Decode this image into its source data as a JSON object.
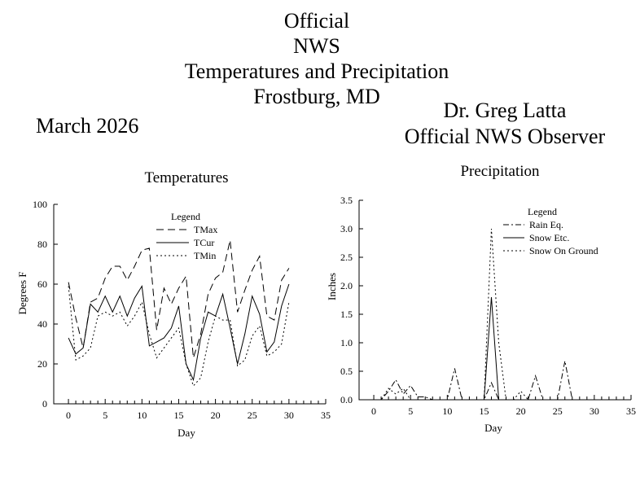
{
  "header": {
    "title_lines": [
      "Official",
      "NWS",
      "Temperatures and Precipitation",
      "Frostburg, MD"
    ],
    "month": "March 2026",
    "observer_name": "Dr. Greg Latta",
    "observer_title": "Official NWS Observer"
  },
  "chart_data": [
    {
      "type": "line",
      "title": "Temperatures",
      "xlabel": "Day",
      "ylabel": "Degrees F",
      "xlim": [
        -2,
        35
      ],
      "ylim": [
        0,
        100
      ],
      "x_ticks": [
        0,
        5,
        10,
        15,
        20,
        25,
        30,
        35
      ],
      "y_ticks": [
        0,
        20,
        40,
        60,
        80,
        100
      ],
      "legend_title": "Legend",
      "legend_position": "top-center",
      "x": [
        0,
        1,
        2,
        3,
        4,
        5,
        6,
        7,
        8,
        9,
        10,
        11,
        12,
        13,
        14,
        15,
        16,
        17,
        18,
        19,
        20,
        21,
        22,
        23,
        24,
        25,
        26,
        27,
        28,
        29,
        30
      ],
      "series": [
        {
          "name": "TMax",
          "style": "dashed",
          "values": [
            61,
            43,
            28,
            51,
            53,
            63,
            69,
            69,
            62,
            69,
            77,
            78,
            37,
            58,
            50,
            58,
            64,
            23,
            35,
            55,
            63,
            66,
            82,
            46,
            57,
            67,
            74,
            44,
            42,
            62,
            68
          ]
        },
        {
          "name": "TCur",
          "style": "solid",
          "values": [
            33,
            25,
            28,
            50,
            46,
            54,
            46,
            54,
            44,
            53,
            59,
            29,
            31,
            33,
            38,
            49,
            20,
            12,
            33,
            46,
            44,
            55,
            38,
            20,
            35,
            54,
            45,
            26,
            31,
            49,
            60
          ]
        },
        {
          "name": "TMin",
          "style": "dotted",
          "values": [
            59,
            22,
            24,
            28,
            44,
            46,
            44,
            46,
            39,
            44,
            51,
            35,
            23,
            28,
            33,
            38,
            20,
            9,
            13,
            31,
            44,
            42,
            42,
            19,
            22,
            34,
            39,
            24,
            26,
            30,
            51
          ]
        }
      ]
    },
    {
      "type": "line",
      "title": "Precipitation",
      "xlabel": "Day",
      "ylabel": "Inches",
      "xlim": [
        -2,
        35
      ],
      "ylim": [
        0,
        3.5
      ],
      "x_ticks": [
        0,
        5,
        10,
        15,
        20,
        25,
        30,
        35
      ],
      "y_ticks": [
        "0.0",
        "0.5",
        "1.0",
        "1.5",
        "2.0",
        "2.5",
        "3.0",
        "3.5"
      ],
      "legend_title": "Legend",
      "legend_position": "top-right",
      "x": [
        0,
        1,
        2,
        3,
        4,
        5,
        6,
        7,
        8,
        9,
        10,
        11,
        12,
        13,
        14,
        15,
        16,
        17,
        18,
        19,
        20,
        21,
        22,
        23,
        24,
        25,
        26,
        27,
        28,
        29,
        30
      ],
      "series": [
        {
          "name": "Rain Eq.",
          "style": "dashdot",
          "values": [
            0,
            0,
            0.15,
            0.35,
            0.1,
            0.25,
            0.05,
            0.05,
            0,
            0,
            0,
            0.55,
            0,
            0,
            0,
            0,
            0.3,
            0,
            0,
            0,
            0,
            0,
            0.42,
            0,
            0,
            0,
            0.68,
            0,
            0,
            0,
            0
          ]
        },
        {
          "name": "Snow Etc.",
          "style": "solid",
          "values": [
            0,
            0,
            0,
            0,
            0,
            0,
            0,
            0,
            0,
            0,
            0,
            0,
            0,
            0,
            0,
            0,
            1.8,
            0,
            0,
            0,
            0,
            0,
            0,
            0,
            0,
            0,
            0,
            0,
            0,
            0,
            0
          ]
        },
        {
          "name": "Snow On Ground",
          "style": "dotted",
          "values": [
            0,
            0,
            0.2,
            0.1,
            0.2,
            0,
            0,
            0,
            0,
            0,
            0,
            0,
            0,
            0,
            0,
            0,
            3.0,
            1.0,
            0,
            0,
            0.15,
            0,
            0,
            0,
            0,
            0,
            0,
            0,
            0,
            0,
            0
          ]
        }
      ]
    }
  ]
}
